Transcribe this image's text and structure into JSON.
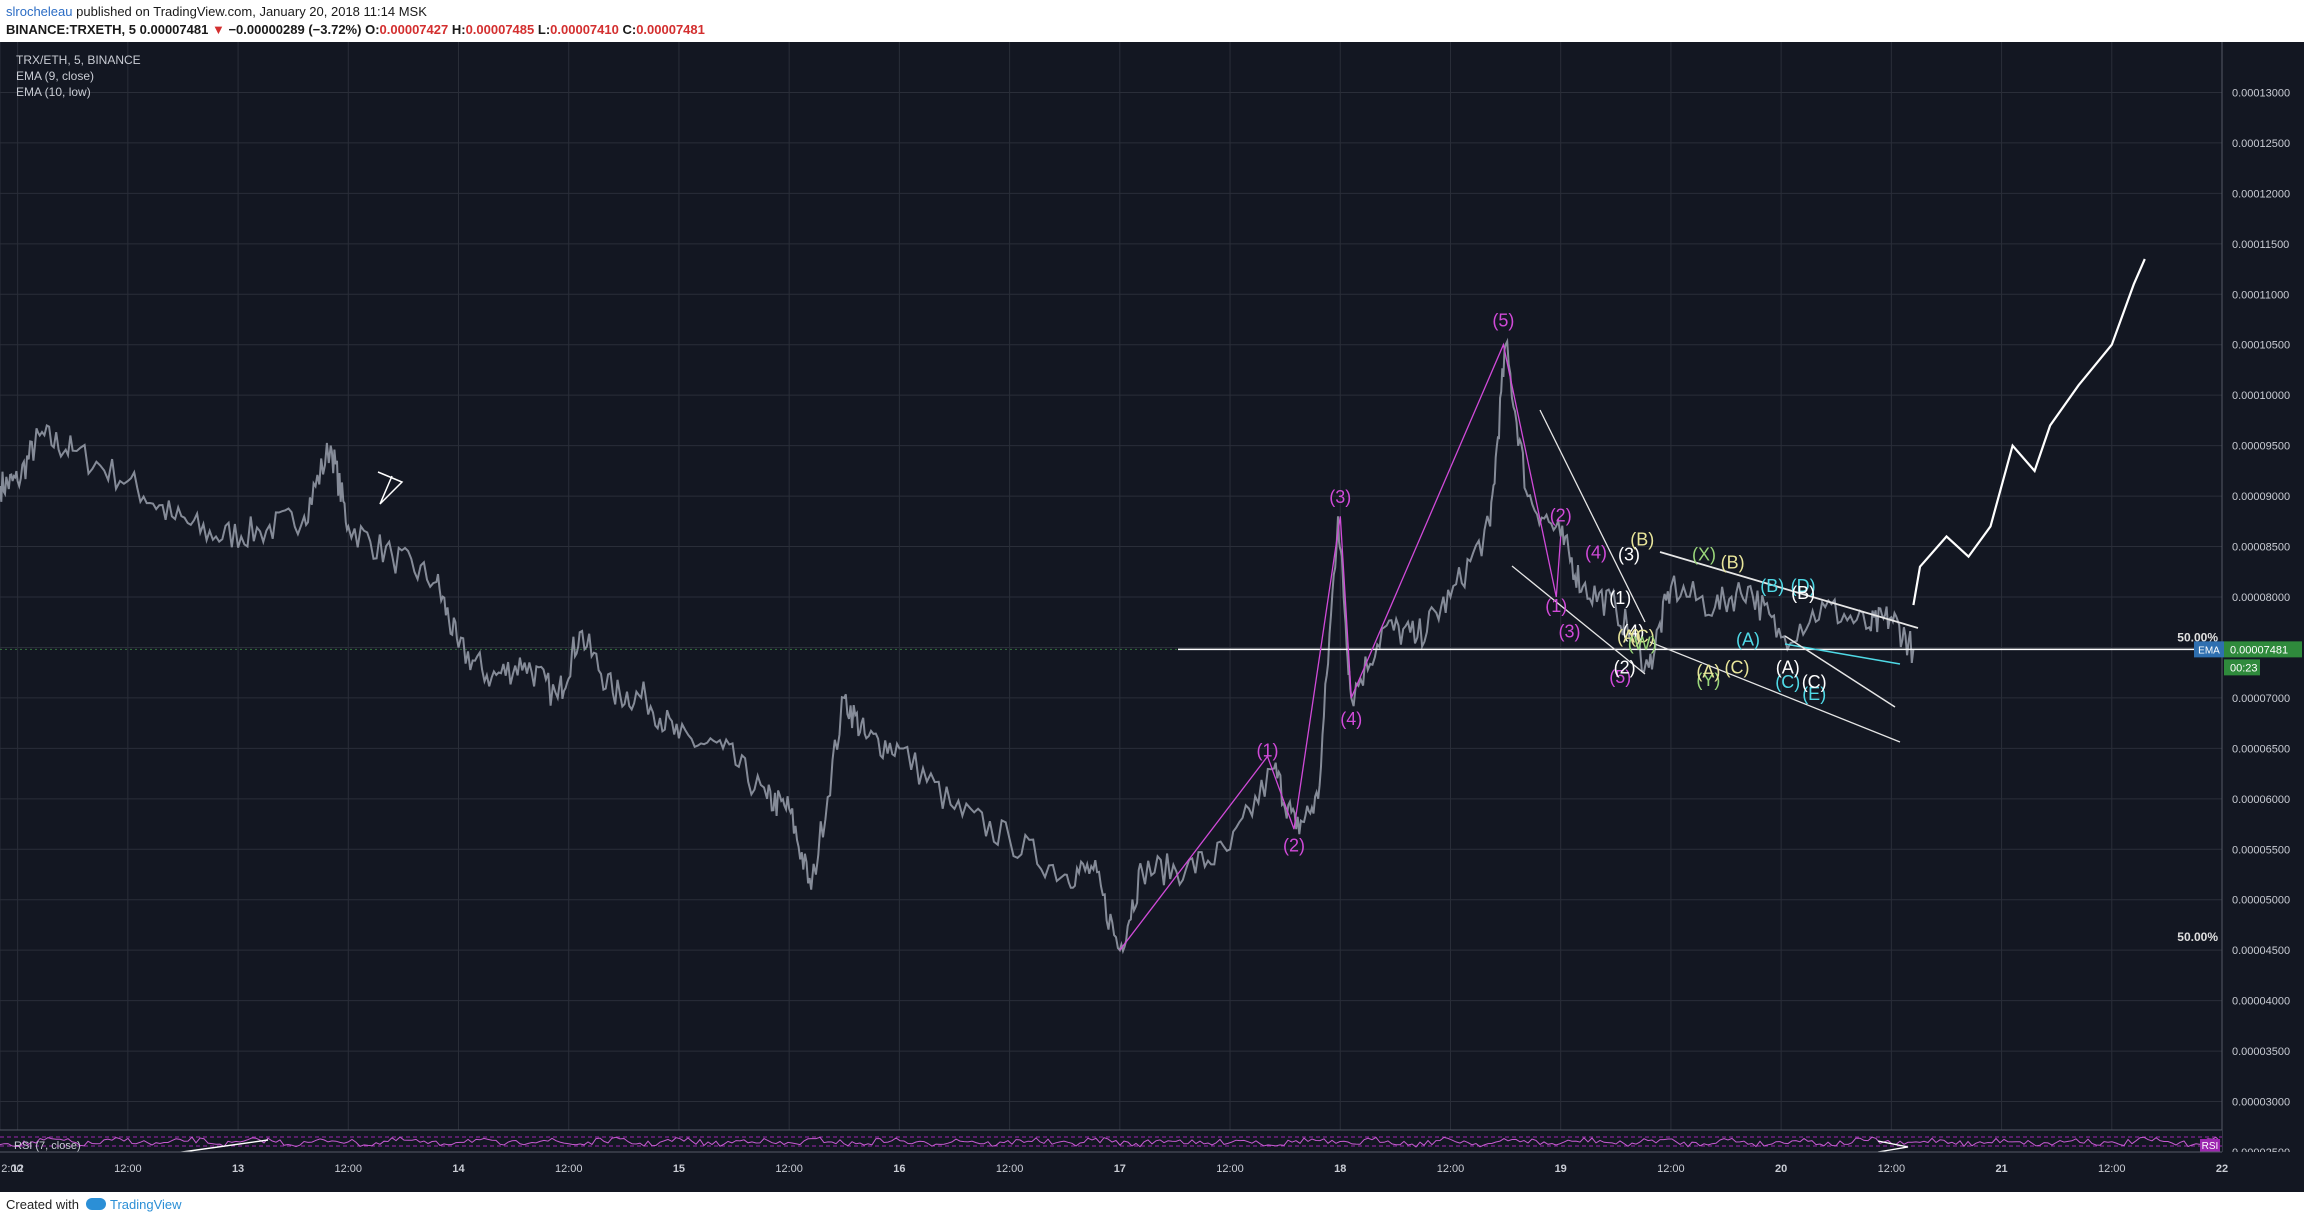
{
  "header": {
    "user": "slrocheleau",
    "published": "published on TradingView.com, January 20, 2018 11:14 MSK",
    "symbol": "BINANCE:TRXETH, 5",
    "price": "0.00007481",
    "arrow": "▼",
    "change": "−0.00000289 (−3.72%)",
    "o_label": "O:",
    "o_value": "0.00007427",
    "h_label": "H:",
    "h_value": "0.00007485",
    "l_label": "L:",
    "l_value": "0.00007410",
    "c_label": "C:",
    "c_value": "0.00007481"
  },
  "legend": {
    "symbol": "TRX/ETH, 5, BINANCE",
    "ema9": "EMA (9, close)",
    "ema10": "EMA (10, low)",
    "rsi": "RSI (7, close)"
  },
  "footer": {
    "created_with": "Created with",
    "brand": "TradingView"
  },
  "colors": {
    "background": "#131722",
    "grid": "#2a2e39",
    "wave_magenta": "#d04ad8",
    "wave_white": "#ffffff",
    "wave_yellow": "#e8e59a",
    "wave_green": "#9ad67a",
    "wave_cyan": "#4fd9e6",
    "ema_badge": "#2e6fb0",
    "price_badge": "#2f8a3c",
    "rsi_badge": "#9c27b0"
  },
  "chart_data": {
    "type": "line",
    "y_ticks": [
      "0.00013000",
      "0.00012500",
      "0.00012000",
      "0.00011500",
      "0.00011000",
      "0.00010500",
      "0.00010000",
      "0.00009500",
      "0.00009000",
      "0.00008500",
      "0.00008000",
      "0.00007500",
      "0.00007000",
      "0.00006500",
      "0.00006000",
      "0.00005500",
      "0.00005000",
      "0.00004500",
      "0.00004000",
      "0.00003500",
      "0.00003000",
      "0.00002500"
    ],
    "ylim": [
      2.5e-05,
      0.000135
    ],
    "x_ticks": [
      "2:00",
      "12",
      "12:00",
      "13",
      "12:00",
      "14",
      "12:00",
      "15",
      "12:00",
      "16",
      "12:00",
      "17",
      "12:00",
      "18",
      "12:00",
      "19",
      "12:00",
      "20",
      "12:00",
      "21",
      "12:00",
      "22"
    ],
    "x_tick_days": [
      11.92,
      12.0,
      12.5,
      13.0,
      13.5,
      14.0,
      14.5,
      15.0,
      15.5,
      16.0,
      16.5,
      17.0,
      17.5,
      18.0,
      18.5,
      19.0,
      19.5,
      20.0,
      20.5,
      21.0,
      21.5,
      22.0
    ],
    "xlim": [
      11.92,
      22.0
    ],
    "price_path": [
      [
        11.92,
        9.1e-05
      ],
      [
        12.0,
        9.15e-05
      ],
      [
        12.1,
        9.6e-05
      ],
      [
        12.25,
        9.45e-05
      ],
      [
        12.5,
        9.15e-05
      ],
      [
        12.7,
        8.8e-05
      ],
      [
        12.9,
        8.6e-05
      ],
      [
        13.1,
        8.65e-05
      ],
      [
        13.3,
        8.8e-05
      ],
      [
        13.42,
        9.5e-05
      ],
      [
        13.5,
        8.7e-05
      ],
      [
        13.7,
        8.4e-05
      ],
      [
        13.9,
        8.15e-05
      ],
      [
        14.0,
        7.5e-05
      ],
      [
        14.15,
        7.2e-05
      ],
      [
        14.3,
        7.35e-05
      ],
      [
        14.45,
        7e-05
      ],
      [
        14.55,
        7.65e-05
      ],
      [
        14.7,
        7.05e-05
      ],
      [
        14.85,
        7e-05
      ],
      [
        15.0,
        6.6e-05
      ],
      [
        15.2,
        6.5e-05
      ],
      [
        15.4,
        6e-05
      ],
      [
        15.5,
        5.9e-05
      ],
      [
        15.6,
        5.1e-05
      ],
      [
        15.75,
        7e-05
      ],
      [
        15.85,
        6.6e-05
      ],
      [
        16.0,
        6.5e-05
      ],
      [
        16.25,
        5.9e-05
      ],
      [
        16.5,
        5.6e-05
      ],
      [
        16.75,
        5.25e-05
      ],
      [
        16.88,
        5.3e-05
      ],
      [
        17.0,
        4.5e-05
      ],
      [
        17.1,
        5.3e-05
      ],
      [
        17.3,
        5.3e-05
      ],
      [
        17.5,
        5.5e-05
      ],
      [
        17.7,
        6.3e-05
      ],
      [
        17.8,
        5.7e-05
      ],
      [
        17.9,
        6e-05
      ],
      [
        17.99,
        8.8e-05
      ],
      [
        18.05,
        7e-05
      ],
      [
        18.2,
        7.7e-05
      ],
      [
        18.35,
        7.6e-05
      ],
      [
        18.5,
        8e-05
      ],
      [
        18.68,
        8.7e-05
      ],
      [
        18.75,
        0.000105
      ],
      [
        18.85,
        9e-05
      ],
      [
        19.0,
        8.6e-05
      ],
      [
        19.1,
        8.1e-05
      ],
      [
        19.25,
        7.9e-05
      ],
      [
        19.4,
        7.3e-05
      ],
      [
        19.5,
        8.1e-05
      ],
      [
        19.7,
        7.9e-05
      ],
      [
        19.85,
        8.1e-05
      ],
      [
        20.0,
        7.6e-05
      ],
      [
        20.2,
        7.9e-05
      ],
      [
        20.4,
        7.7e-05
      ],
      [
        20.5,
        7.8e-05
      ],
      [
        20.6,
        7.48e-05
      ]
    ],
    "current_price_line": 7.481e-05,
    "projection": [
      [
        20.6,
        7.92e-05
      ],
      [
        20.63,
        8.3e-05
      ],
      [
        20.75,
        8.6e-05
      ],
      [
        20.85,
        8.4e-05
      ],
      [
        20.95,
        8.7e-05
      ],
      [
        21.05,
        9.5e-05
      ],
      [
        21.15,
        9.25e-05
      ],
      [
        21.22,
        9.7e-05
      ],
      [
        21.35,
        0.000101
      ],
      [
        21.5,
        0.000105
      ],
      [
        21.6,
        0.000111
      ],
      [
        21.65,
        0.0001135
      ]
    ],
    "fib_levels": [
      {
        "label": "50.00%",
        "value": 7.52e-05
      },
      {
        "label": "50.00%",
        "value": 4.55e-05
      }
    ],
    "price_badges": [
      {
        "label": "EMA",
        "text": "0.00007481"
      },
      {
        "label": "",
        "text": "00:23"
      }
    ],
    "wave_labels": [
      {
        "text": "(1)",
        "day": 17.67,
        "price": 6.42e-05,
        "color": "magenta"
      },
      {
        "text": "(2)",
        "day": 17.79,
        "price": 5.48e-05,
        "color": "magenta"
      },
      {
        "text": "(3)",
        "day": 18.0,
        "price": 8.93e-05,
        "color": "magenta"
      },
      {
        "text": "(4)",
        "day": 18.05,
        "price": 6.73e-05,
        "color": "magenta"
      },
      {
        "text": "(5)",
        "day": 18.74,
        "price": 0.0001068,
        "color": "magenta"
      },
      {
        "text": "(1)",
        "day": 18.98,
        "price": 7.85e-05,
        "color": "magenta"
      },
      {
        "text": "(2)",
        "day": 19.0,
        "price": 8.75e-05,
        "color": "magenta"
      },
      {
        "text": "(3)",
        "day": 19.04,
        "price": 7.6e-05,
        "color": "magenta"
      },
      {
        "text": "(4)",
        "day": 19.16,
        "price": 8.38e-05,
        "color": "magenta"
      },
      {
        "text": "(5)",
        "day": 19.27,
        "price": 7.15e-05,
        "color": "magenta"
      },
      {
        "text": "(1)",
        "day": 19.27,
        "price": 7.93e-05,
        "color": "white"
      },
      {
        "text": "(2)",
        "day": 19.29,
        "price": 7.24e-05,
        "color": "white"
      },
      {
        "text": "(3)",
        "day": 19.31,
        "price": 8.36e-05,
        "color": "white"
      },
      {
        "text": "(4)",
        "day": 19.33,
        "price": 7.6e-05,
        "color": "white"
      },
      {
        "text": "(A)",
        "day": 19.31,
        "price": 7.55e-05,
        "color": "yellow"
      },
      {
        "text": "(B)",
        "day": 19.37,
        "price": 8.51e-05,
        "color": "yellow"
      },
      {
        "text": "(C)",
        "day": 19.37,
        "price": 7.55e-05,
        "color": "yellow"
      },
      {
        "text": "(W)",
        "day": 19.37,
        "price": 7.48e-05,
        "color": "green"
      },
      {
        "text": "(X)",
        "day": 19.65,
        "price": 8.36e-05,
        "color": "green"
      },
      {
        "text": "(Y)",
        "day": 19.67,
        "price": 7.12e-05,
        "color": "green"
      },
      {
        "text": "(A)",
        "day": 19.67,
        "price": 7.2e-05,
        "color": "yellow"
      },
      {
        "text": "(B)",
        "day": 19.78,
        "price": 8.28e-05,
        "color": "yellow"
      },
      {
        "text": "(C)",
        "day": 19.8,
        "price": 7.24e-05,
        "color": "yellow"
      },
      {
        "text": "(A)",
        "day": 19.85,
        "price": 7.52e-05,
        "color": "cyan"
      },
      {
        "text": "(B)",
        "day": 19.96,
        "price": 8.05e-05,
        "color": "cyan"
      },
      {
        "text": "(C)",
        "day": 20.03,
        "price": 7.1e-05,
        "color": "cyan"
      },
      {
        "text": "(D)",
        "day": 20.1,
        "price": 8.05e-05,
        "color": "cyan"
      },
      {
        "text": "(E)",
        "day": 20.15,
        "price": 6.98e-05,
        "color": "cyan"
      },
      {
        "text": "(A)",
        "day": 20.03,
        "price": 7.24e-05,
        "color": "white"
      },
      {
        "text": "(B)",
        "day": 20.1,
        "price": 7.98e-05,
        "color": "white"
      },
      {
        "text": "(C)",
        "day": 20.15,
        "price": 7.1e-05,
        "color": "white"
      }
    ]
  }
}
